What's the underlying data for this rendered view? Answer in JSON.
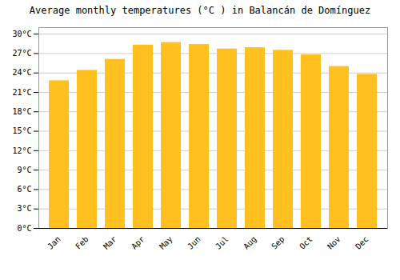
{
  "chart_data": {
    "type": "bar",
    "title": "Average monthly temperatures (°C ) in Balancán de Domínguez",
    "categories": [
      "Jan",
      "Feb",
      "Mar",
      "Apr",
      "May",
      "Jun",
      "Jul",
      "Aug",
      "Sep",
      "Oct",
      "Nov",
      "Dec"
    ],
    "values": [
      22.8,
      24.4,
      26.1,
      28.3,
      28.7,
      28.4,
      27.7,
      27.9,
      27.5,
      26.8,
      25.0,
      23.8
    ],
    "color": "#FFC020",
    "ylim": [
      0,
      31
    ],
    "yticks": [
      {
        "value": 0,
        "label": "0°C"
      },
      {
        "value": 3,
        "label": "3°C"
      },
      {
        "value": 6,
        "label": "6°C"
      },
      {
        "value": 9,
        "label": "9°C"
      },
      {
        "value": 12,
        "label": "12°C"
      },
      {
        "value": 15,
        "label": "15°C"
      },
      {
        "value": 18,
        "label": "18°C"
      },
      {
        "value": 21,
        "label": "21°C"
      },
      {
        "value": 24,
        "label": "24°C"
      },
      {
        "value": 27,
        "label": "27°C"
      },
      {
        "value": 30,
        "label": "30°C"
      }
    ],
    "grid": true
  }
}
